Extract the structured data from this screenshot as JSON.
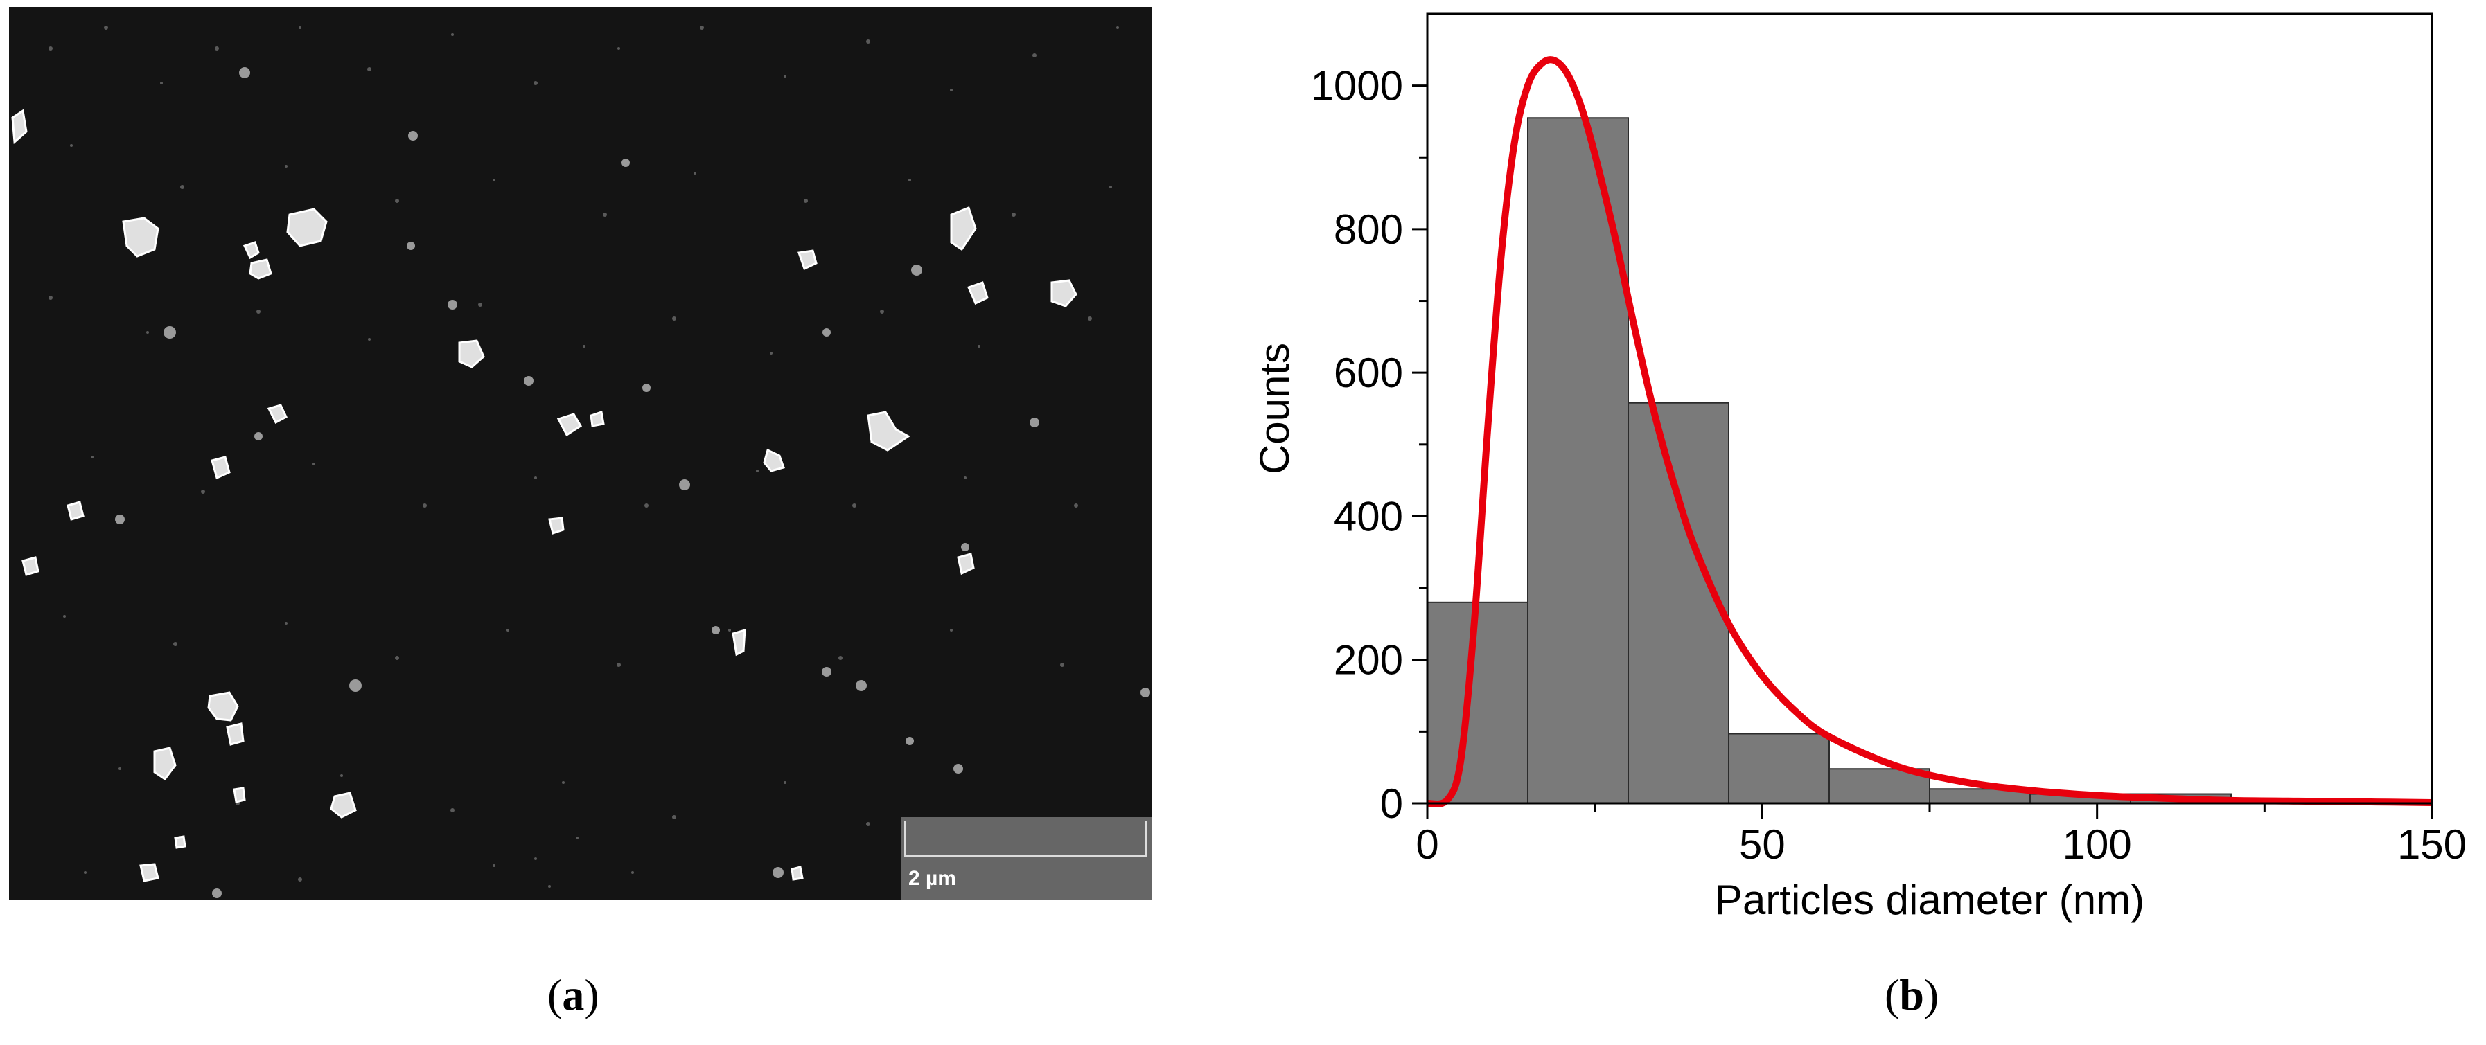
{
  "panel_a": {
    "scalebar_label": "2 µm",
    "caption_letter": "a"
  },
  "panel_b": {
    "caption_letter": "b"
  },
  "chart_data": {
    "type": "bar",
    "title": "",
    "xlabel": "Particles diameter (nm)",
    "ylabel": "Counts",
    "xlim": [
      0,
      150
    ],
    "ylim": [
      0,
      1100
    ],
    "xticks": [
      0,
      50,
      100,
      150
    ],
    "yticks": [
      0,
      200,
      400,
      600,
      800,
      1000
    ],
    "grid": false,
    "histogram": {
      "bin_edges": [
        0,
        15,
        30,
        45,
        60,
        75,
        90,
        105,
        120
      ],
      "counts": [
        280,
        955,
        558,
        97,
        48,
        20,
        13,
        13
      ],
      "color": "#7a7a7a"
    },
    "fit_curve": {
      "color": "#e8000d",
      "x": [
        0,
        3,
        5,
        7,
        9,
        11,
        13,
        15,
        17,
        19,
        21,
        23,
        25,
        28,
        31,
        34,
        37,
        40,
        45,
        50,
        55,
        60,
        70,
        80,
        90,
        100,
        110,
        120,
        130,
        140,
        150
      ],
      "y": [
        0,
        5,
        60,
        250,
        520,
        760,
        920,
        1000,
        1030,
        1035,
        1015,
        970,
        905,
        790,
        660,
        540,
        440,
        355,
        250,
        178,
        128,
        93,
        52,
        30,
        18,
        11,
        7,
        4,
        3,
        2,
        1
      ]
    }
  }
}
